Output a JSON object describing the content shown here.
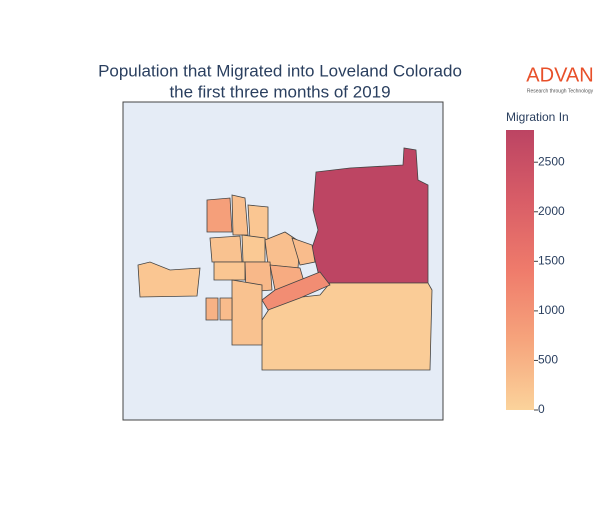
{
  "chart_data": {
    "type": "choropleth",
    "title": "Population that Migrated into Loveland Colorado",
    "subtitle": "the first three months of 2019",
    "logo": "ADVAN",
    "logo_tagline": "Research through Technology",
    "colorbar_title": "Migration In",
    "colorscale": [
      "#fbd39b",
      "#f6a47c",
      "#ef7b6b",
      "#d85d67",
      "#bc4463"
    ],
    "zlim": [
      0,
      2825
    ],
    "zticks": [
      0,
      500,
      1000,
      1500,
      2000,
      2500
    ],
    "values": [
      2800,
      100,
      200,
      800,
      300,
      200,
      250,
      150,
      300,
      200,
      400,
      600,
      1100,
      250,
      500,
      350,
      350
    ]
  }
}
